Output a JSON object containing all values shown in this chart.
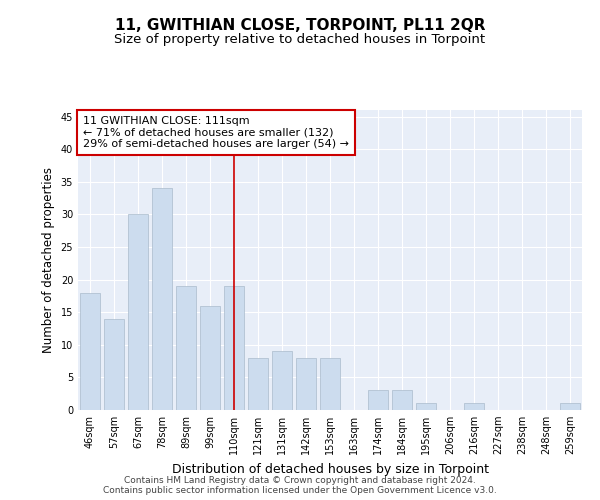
{
  "title": "11, GWITHIAN CLOSE, TORPOINT, PL11 2QR",
  "subtitle": "Size of property relative to detached houses in Torpoint",
  "xlabel": "Distribution of detached houses by size in Torpoint",
  "ylabel": "Number of detached properties",
  "categories": [
    "46sqm",
    "57sqm",
    "67sqm",
    "78sqm",
    "89sqm",
    "99sqm",
    "110sqm",
    "121sqm",
    "131sqm",
    "142sqm",
    "153sqm",
    "163sqm",
    "174sqm",
    "184sqm",
    "195sqm",
    "206sqm",
    "216sqm",
    "227sqm",
    "238sqm",
    "248sqm",
    "259sqm"
  ],
  "values": [
    18,
    14,
    30,
    34,
    19,
    16,
    19,
    8,
    9,
    8,
    8,
    0,
    3,
    3,
    1,
    0,
    1,
    0,
    0,
    0,
    1
  ],
  "bar_color": "#ccdcee",
  "bar_edge_color": "#aabbcc",
  "vline_x": 6,
  "vline_color": "#cc0000",
  "annotation_line1": "11 GWITHIAN CLOSE: 111sqm",
  "annotation_line2": "← 71% of detached houses are smaller (132)",
  "annotation_line3": "29% of semi-detached houses are larger (54) →",
  "annotation_box_color": "#ffffff",
  "annotation_box_edge": "#cc0000",
  "ylim": [
    0,
    46
  ],
  "yticks": [
    0,
    5,
    10,
    15,
    20,
    25,
    30,
    35,
    40,
    45
  ],
  "bg_color": "#e8eef8",
  "grid_color": "#ffffff",
  "footer_line1": "Contains HM Land Registry data © Crown copyright and database right 2024.",
  "footer_line2": "Contains public sector information licensed under the Open Government Licence v3.0.",
  "title_fontsize": 11,
  "subtitle_fontsize": 9.5,
  "xlabel_fontsize": 9,
  "ylabel_fontsize": 8.5,
  "tick_fontsize": 7,
  "annotation_fontsize": 8,
  "footer_fontsize": 6.5
}
